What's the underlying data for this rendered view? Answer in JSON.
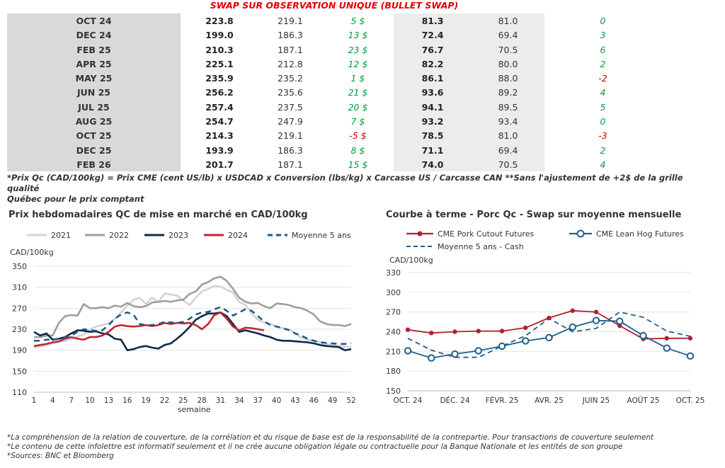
{
  "table": {
    "title": "SWAP SUR OBSERVATION UNIQUE (BULLET SWAP)",
    "rows": [
      {
        "month": "OCT 24",
        "a": "223.8",
        "b": "219.1",
        "c": "5 $",
        "d": "81.3",
        "e": "81.0",
        "f": "0"
      },
      {
        "month": "DEC 24",
        "a": "199.0",
        "b": "186.3",
        "c": "13 $",
        "d": "72.4",
        "e": "69.4",
        "f": "3"
      },
      {
        "month": "FEB 25",
        "a": "210.3",
        "b": "187.1",
        "c": "23 $",
        "d": "76.7",
        "e": "70.5",
        "f": "6"
      },
      {
        "month": "APR 25",
        "a": "225.1",
        "b": "212.8",
        "c": "12 $",
        "d": "82.2",
        "e": "80.0",
        "f": "2"
      },
      {
        "month": "MAY 25",
        "a": "235.9",
        "b": "235.2",
        "c": "1 $",
        "d": "86.1",
        "e": "88.0",
        "f": "-2"
      },
      {
        "month": "JUN 25",
        "a": "256.2",
        "b": "235.6",
        "c": "21 $",
        "d": "93.6",
        "e": "89.2",
        "f": "4"
      },
      {
        "month": "JUL 25",
        "a": "257.4",
        "b": "237.5",
        "c": "20 $",
        "d": "94.1",
        "e": "89.5",
        "f": "5"
      },
      {
        "month": "AUG 25",
        "a": "254.7",
        "b": "247.9",
        "c": "7 $",
        "d": "93.2",
        "e": "93.4",
        "f": "0"
      },
      {
        "month": "OCT 25",
        "a": "214.3",
        "b": "219.1",
        "c": "-5 $",
        "d": "78.5",
        "e": "81.0",
        "f": "-3"
      },
      {
        "month": "DEC 25",
        "a": "193.9",
        "b": "186.3",
        "c": "8 $",
        "d": "71.1",
        "e": "69.4",
        "f": "2"
      },
      {
        "month": "FEB 26",
        "a": "201.7",
        "b": "187.1",
        "c": "15 $",
        "d": "74.0",
        "e": "70.5",
        "f": "4"
      }
    ],
    "colors": {
      "positive": "#00a03c",
      "negative": "#cc0000",
      "zero_green": "#00a03c"
    }
  },
  "note_line1": "*Prix Qc (CAD/100kg) = Prix CME (cent US/lb) x USDCAD x Conversion (lbs/kg) x Carcasse US / Carcasse CAN **Sans l'ajustement de +2$ de la grille qualité",
  "note_line2": "Québec pour le prix comptant",
  "footer": [
    "*La compréhension de la relation de couverture, de la corrélation et du risque de base est de la responsabilité de la contrepartie. Pour transactions de couverture seulement",
    "*Le contenu de cette infolettre est informatif seulement et il ne crée aucune obligation légale ou contractuelle pour la Banque Nationale et les entités de son groupe",
    "*Sources: BNC et Bloomberg"
  ],
  "chart_data": [
    {
      "type": "line",
      "title": "Prix hebdomadaires QC de mise en marché en CAD/100kg",
      "ylabel": "CAD/100kg",
      "xlabel": "semaine",
      "ylim": [
        110,
        350
      ],
      "yticks": [
        110,
        150,
        190,
        230,
        270,
        310,
        350
      ],
      "xticks": [
        1,
        4,
        7,
        10,
        13,
        16,
        19,
        22,
        25,
        28,
        31,
        34,
        37,
        40,
        43,
        46,
        49,
        52
      ],
      "legend": "top",
      "series": [
        {
          "name": "2021",
          "color": "#d3d3d3",
          "dash": false,
          "x": [
            1,
            2,
            3,
            4,
            5,
            6,
            7,
            8,
            9,
            10,
            11,
            12,
            13,
            14,
            15,
            16,
            17,
            18,
            19,
            20,
            21,
            22,
            23,
            24,
            25,
            26,
            27,
            28,
            29,
            30,
            31,
            32,
            33,
            34,
            35,
            36,
            37,
            38,
            39,
            40,
            41,
            42,
            43,
            44,
            45,
            46,
            47,
            48,
            49,
            50,
            51,
            52
          ],
          "y": [
            195,
            197,
            200,
            203,
            205,
            208,
            212,
            216,
            220,
            230,
            235,
            238,
            242,
            250,
            262,
            275,
            286,
            290,
            278,
            290,
            282,
            298,
            296,
            294,
            285,
            276,
            290,
            302,
            307,
            312,
            311,
            305,
            300,
            282,
            276,
            260,
            248,
            243,
            240,
            235,
            232,
            230,
            222,
            214,
            210,
            208,
            205,
            202,
            200,
            198,
            197,
            196
          ]
        },
        {
          "name": "2022",
          "color": "#9e9e9e",
          "dash": false,
          "x": [
            1,
            2,
            3,
            4,
            5,
            6,
            7,
            8,
            9,
            10,
            11,
            12,
            13,
            14,
            15,
            16,
            17,
            18,
            19,
            20,
            21,
            22,
            23,
            24,
            25,
            26,
            27,
            28,
            29,
            30,
            31,
            32,
            33,
            34,
            35,
            36,
            37,
            38,
            39,
            40,
            41,
            42,
            43,
            44,
            45,
            46,
            47,
            48,
            49,
            50,
            51,
            52
          ],
          "y": [
            215,
            215,
            218,
            218,
            242,
            255,
            257,
            256,
            278,
            270,
            270,
            272,
            270,
            275,
            273,
            280,
            274,
            272,
            274,
            281,
            282,
            284,
            282,
            285,
            286,
            297,
            302,
            315,
            320,
            327,
            330,
            322,
            307,
            290,
            282,
            279,
            280,
            274,
            270,
            279,
            278,
            276,
            272,
            270,
            265,
            258,
            245,
            240,
            238,
            238,
            236,
            240
          ]
        },
        {
          "name": "2023",
          "color": "#0f2a4a",
          "dash": false,
          "x": [
            1,
            2,
            3,
            4,
            5,
            6,
            7,
            8,
            9,
            10,
            11,
            12,
            13,
            14,
            15,
            16,
            17,
            18,
            19,
            20,
            21,
            22,
            23,
            24,
            25,
            26,
            27,
            28,
            29,
            30,
            31,
            32,
            33,
            34,
            35,
            36,
            37,
            38,
            39,
            40,
            41,
            42,
            43,
            44,
            45,
            46,
            47,
            48,
            49,
            50,
            51,
            52
          ],
          "y": [
            225,
            218,
            222,
            210,
            212,
            215,
            222,
            228,
            227,
            225,
            226,
            222,
            220,
            212,
            210,
            190,
            192,
            196,
            198,
            195,
            193,
            200,
            203,
            212,
            222,
            234,
            248,
            255,
            260,
            260,
            262,
            255,
            240,
            225,
            228,
            225,
            222,
            218,
            215,
            210,
            208,
            208,
            207,
            206,
            205,
            203,
            200,
            198,
            197,
            196,
            190,
            192
          ]
        },
        {
          "name": "2024",
          "color": "#c0272d",
          "dash": false,
          "x": [
            1,
            2,
            3,
            4,
            5,
            6,
            7,
            8,
            9,
            10,
            11,
            12,
            13,
            14,
            15,
            16,
            17,
            18,
            19,
            20,
            21,
            22,
            23,
            24,
            25,
            26,
            27,
            28,
            29,
            30,
            31,
            32,
            33,
            34,
            35,
            36,
            37,
            38
          ],
          "y": [
            198,
            200,
            202,
            205,
            207,
            212,
            215,
            212,
            210,
            215,
            215,
            218,
            225,
            235,
            238,
            236,
            235,
            236,
            238,
            236,
            238,
            242,
            240,
            242,
            241,
            242,
            238,
            230,
            240,
            257,
            262,
            250,
            235,
            228,
            233,
            232,
            230,
            228
          ]
        },
        {
          "name": "Moyenne 5 ans",
          "color": "#1a5a8a",
          "dash": true,
          "x": [
            1,
            2,
            3,
            4,
            5,
            6,
            7,
            8,
            9,
            10,
            11,
            12,
            13,
            14,
            15,
            16,
            17,
            18,
            19,
            20,
            21,
            22,
            23,
            24,
            25,
            26,
            27,
            28,
            29,
            30,
            31,
            32,
            33,
            34,
            35,
            36,
            37,
            38,
            39,
            40,
            41,
            42,
            43,
            44,
            45,
            46,
            47,
            48,
            49,
            50,
            51,
            52
          ],
          "y": [
            208,
            208,
            210,
            210,
            212,
            215,
            218,
            225,
            230,
            228,
            227,
            228,
            238,
            250,
            258,
            262,
            258,
            240,
            238,
            238,
            240,
            244,
            243,
            242,
            244,
            250,
            258,
            262,
            263,
            268,
            272,
            265,
            256,
            262,
            268,
            265,
            255,
            245,
            238,
            235,
            232,
            228,
            222,
            218,
            212,
            208,
            205,
            204,
            203,
            202,
            202,
            203
          ]
        }
      ]
    },
    {
      "type": "line",
      "title": "Courbe à terme - Porc Qc - Swap sur moyenne mensuelle",
      "ylabel": "CAD/100kg",
      "ylim": [
        150,
        330
      ],
      "yticks": [
        150,
        180,
        210,
        240,
        270,
        300,
        330
      ],
      "categories": [
        "OCT. 24",
        "DÉC. 24",
        "FÉVR. 25",
        "AVR. 25",
        "JUIN 25",
        "AOÛT 25",
        "OCT. 25"
      ],
      "legend": "top",
      "series": [
        {
          "name": "CME Pork Cutout Futures",
          "color": "#b22030",
          "marker": "dot",
          "x": [
            0,
            1,
            2,
            3,
            4,
            5,
            6,
            7,
            8,
            9,
            10,
            11,
            12
          ],
          "y": [
            243,
            238,
            240,
            241,
            241,
            246,
            261,
            272,
            270,
            249,
            229,
            230,
            230
          ]
        },
        {
          "name": "CME Lean Hog Futures",
          "color": "#1f5f8b",
          "marker": "circle",
          "x": [
            0,
            1,
            2,
            3,
            4,
            5,
            6,
            7,
            8,
            9,
            10,
            11,
            12
          ],
          "y": [
            211,
            200,
            206,
            211,
            218,
            226,
            231,
            247,
            257,
            256,
            234,
            215,
            203
          ]
        },
        {
          "name": "Moyenne 5 ans - Cash",
          "color": "#1f5f8b",
          "dash": true,
          "x": [
            0,
            1,
            2,
            3,
            4,
            5,
            6,
            7,
            8,
            9,
            10,
            11,
            12
          ],
          "y": [
            230,
            212,
            201,
            201,
            218,
            234,
            260,
            240,
            245,
            270,
            262,
            241,
            233
          ]
        }
      ]
    }
  ]
}
